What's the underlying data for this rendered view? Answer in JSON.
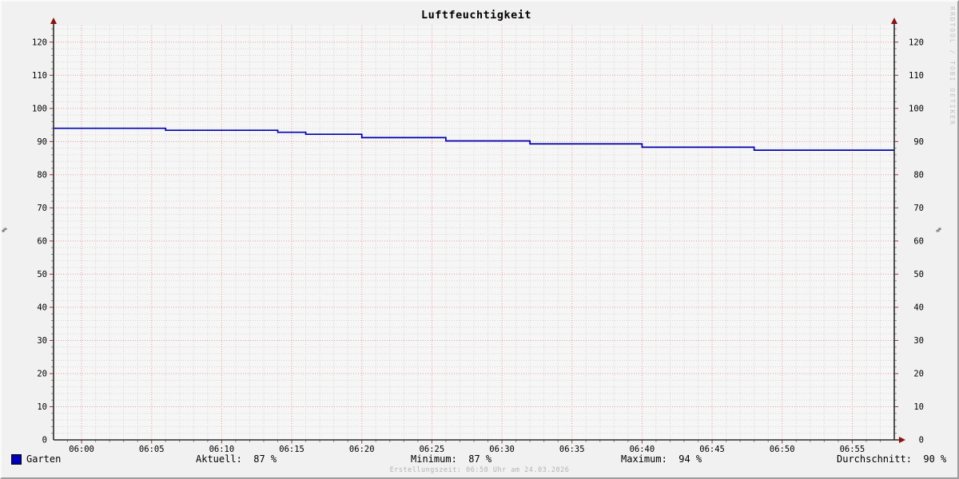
{
  "title": "Luftfeuchtigkeit",
  "watermark": "RRDTOOL / TOBI OETIKER",
  "footer": "Erstellungszeit: 06:58 Uhr am 24.03.2026",
  "legend": {
    "series_label": "Garten",
    "swatch_color": "#0000bb",
    "stats": [
      "Aktuell:  87 %",
      "Minimum:  87 %",
      "Maximum:  94 %",
      "Durchschnitt:  90 %"
    ]
  },
  "chart_data": {
    "type": "line",
    "title": "Luftfeuchtigkeit",
    "ylabel_left": "%",
    "ylabel_right": "%",
    "ylim": [
      0,
      125
    ],
    "y_tick_labels": [
      0,
      10,
      20,
      30,
      40,
      50,
      60,
      70,
      80,
      90,
      100,
      110,
      120
    ],
    "y_major_step": 10,
    "y_minor_step": 2,
    "x_range": [
      "05:58",
      "06:58"
    ],
    "x_tick_labels": [
      "06:00",
      "06:05",
      "06:10",
      "06:15",
      "06:20",
      "06:25",
      "06:30",
      "06:35",
      "06:40",
      "06:45",
      "06:50",
      "06:55"
    ],
    "x_major_step_min": 5,
    "x_minor_step_min": 1,
    "grid": "on",
    "legend_position": "bottom",
    "series": [
      {
        "name": "Garten",
        "color": "#0000b0",
        "draw_style": "step",
        "points": [
          [
            "05:58",
            94.0
          ],
          [
            "06:06",
            93.4
          ],
          [
            "06:14",
            92.8
          ],
          [
            "06:16",
            92.2
          ],
          [
            "06:20",
            91.2
          ],
          [
            "06:26",
            90.2
          ],
          [
            "06:32",
            89.3
          ],
          [
            "06:40",
            88.3
          ],
          [
            "06:48",
            87.4
          ],
          [
            "06:58",
            87.4
          ]
        ]
      }
    ],
    "stats": {
      "aktuell_pct": 87,
      "minimum_pct": 87,
      "maximum_pct": 94,
      "durchschnitt_pct": 90
    },
    "colors": {
      "grid_major": "#ef9c9c",
      "grid_minor": "#d5d5d5",
      "axis": "#2a2a2a",
      "arrow": "#8b1010",
      "plot_bg": "#f6f6f6",
      "image_bg": "#f1f1f1"
    }
  }
}
